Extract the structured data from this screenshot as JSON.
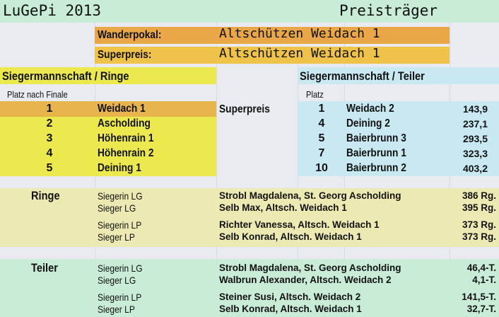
{
  "header": {
    "title": "LuGePi 2013",
    "subtitle": "Preisträger"
  },
  "awards": [
    {
      "label": "Wanderpokal:",
      "value": "Altschützen Weidach 1"
    },
    {
      "label": "Superpreis:",
      "value": "Altschützen Weidach 1"
    }
  ],
  "ringe_team": {
    "title": "Siegermannschaft / Ringe",
    "col_header": "Platz nach Finale",
    "superpreis_label": "Superpreis",
    "rows": [
      [
        "1",
        "Weidach 1"
      ],
      [
        "2",
        "Ascholding"
      ],
      [
        "3",
        "Höhenrain 1"
      ],
      [
        "4",
        "Höhenrain 2"
      ],
      [
        "5",
        "Deining 1"
      ]
    ]
  },
  "teiler_team": {
    "title": "Siegermannschaft / Teiler",
    "col_header": "Platz",
    "rows": [
      [
        "1",
        "Weidach 2",
        "143,9"
      ],
      [
        "4",
        "Deining 2",
        "237,1"
      ],
      [
        "5",
        "Baierbrunn 3",
        "293,5"
      ],
      [
        "7",
        "Baierbrunn 1",
        "323,3"
      ],
      [
        "10",
        "Baierbrunn 2",
        "403,2"
      ]
    ]
  },
  "ringe": {
    "title": "Ringe",
    "rows": [
      [
        "Siegerin LG",
        "Strobl Magdalena, St. Georg Ascholding",
        "386 Rg."
      ],
      [
        "Sieger LG",
        "Selb Max, Altsch. Weidach 1",
        "395 Rg."
      ],
      [
        "Siegerin LP",
        "Richter Vanessa, Altsch. Weidach 1",
        "373 Rg."
      ],
      [
        "Sieger LP",
        "Selb Konrad, Altsch. Weidach 1",
        "373 Rg."
      ]
    ]
  },
  "teiler": {
    "title": "Teiler",
    "rows": [
      [
        "Siegerin LG",
        "Strobl Magdalena, St. Georg Ascholding",
        "46,4-T."
      ],
      [
        "Sieger LG",
        "Walbrun Alexander, Altsch. Weidach 2",
        "4,1-T."
      ],
      [
        "Siegerin LP",
        "Steiner Susi, Altsch. Weidach 2",
        "141,5-T."
      ],
      [
        "Sieger LP",
        "Selb Konrad, Altsch. Weidach 1",
        "32,7-T."
      ]
    ]
  },
  "colors": {
    "title_bg": "#c8ecd6",
    "wanderpokal_bg": "#e9a748",
    "superpreis_bg": "#efc24a",
    "ringe_bg": "#ebe94e",
    "teiler_bg": "#c8e8f2",
    "first_bg": "#e8b44e",
    "ringe_section_bg": "#ede9b2",
    "teiler_section_bg": "#c9ecd6"
  }
}
